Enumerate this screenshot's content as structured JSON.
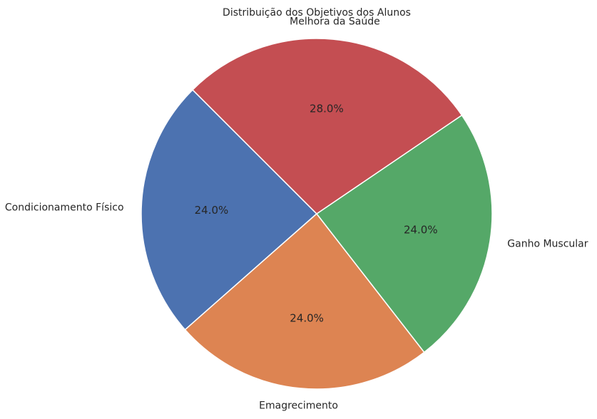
{
  "chart_data": {
    "type": "pie",
    "title": "Distribuição dos Objetivos dos Alunos",
    "start_angle_deg": 135,
    "direction": "counterclockwise",
    "categories": [
      "Condicionamento Físico",
      "Emagrecimento",
      "Ganho Muscular",
      "Melhora da Saúde"
    ],
    "values": [
      24.0,
      24.0,
      24.0,
      28.0
    ],
    "percent_labels": [
      "24.0%",
      "24.0%",
      "24.0%",
      "28.0%"
    ],
    "colors": [
      "#4c72b0",
      "#dd8452",
      "#55a868",
      "#c44e52"
    ]
  }
}
